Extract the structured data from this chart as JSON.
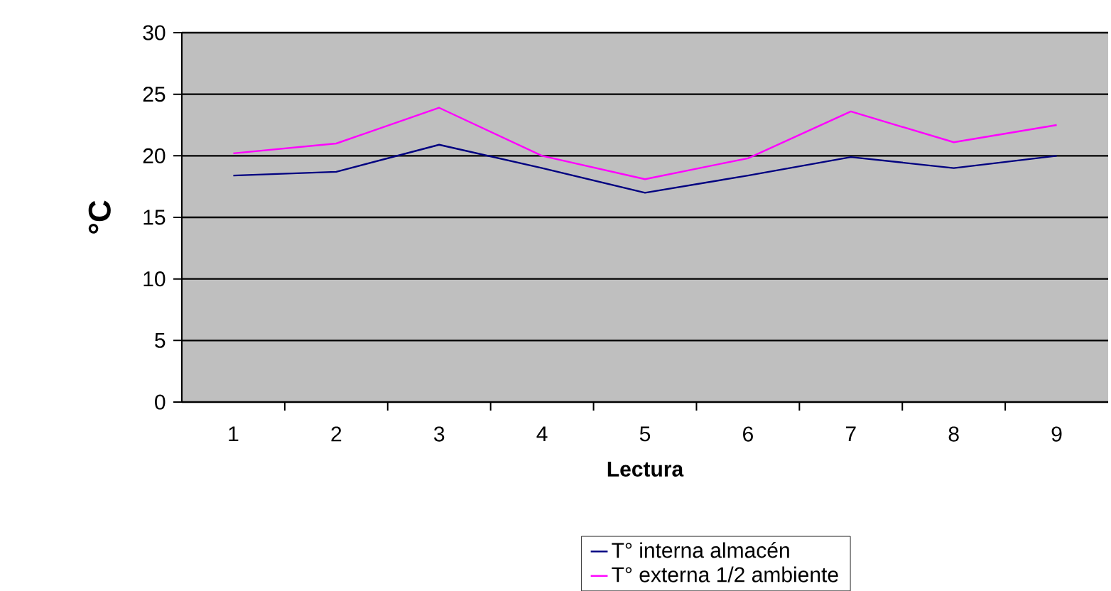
{
  "chart_data": {
    "type": "line",
    "xlabel": "Lectura",
    "ylabel": "°C",
    "categories": [
      "1",
      "2",
      "3",
      "4",
      "5",
      "6",
      "7",
      "8",
      "9"
    ],
    "series": [
      {
        "name": "T° interna almacén",
        "color": "#000080",
        "values": [
          18.4,
          18.7,
          20.9,
          19.0,
          17.0,
          18.4,
          19.9,
          19.0,
          20.0
        ]
      },
      {
        "name": "T° externa 1/2 ambiente",
        "color": "#ff00ff",
        "values": [
          20.2,
          21.0,
          23.9,
          20.0,
          18.1,
          19.8,
          23.6,
          21.1,
          22.5
        ]
      }
    ],
    "ylim": [
      0,
      30
    ],
    "yticks": [
      0,
      5,
      10,
      15,
      20,
      25,
      30
    ],
    "grid": "y",
    "legend": "bottom right",
    "marker": "none",
    "line_style": "solid"
  }
}
